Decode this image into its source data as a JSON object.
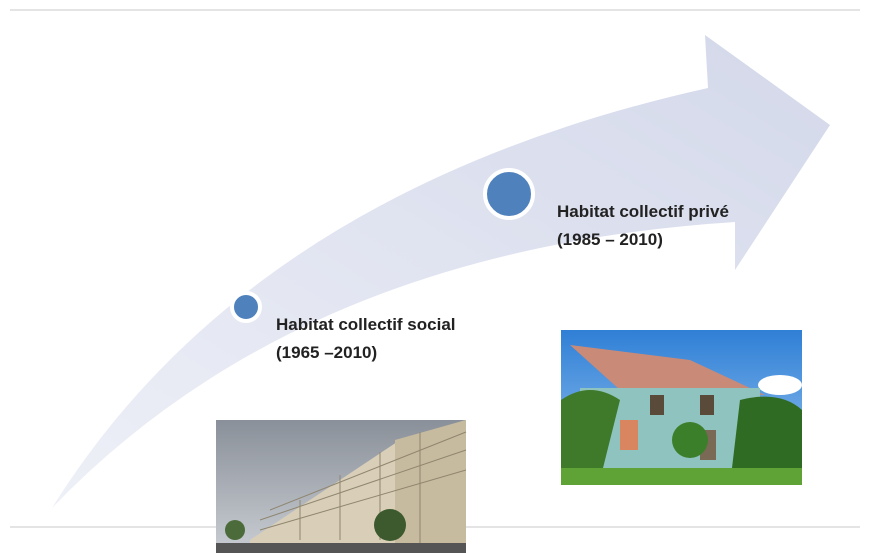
{
  "milestones": [
    {
      "label": "Habitat collectif social",
      "period": "(1965 –2010)"
    },
    {
      "label": "Habitat collectif privé",
      "period": "(1985 – 2010)"
    }
  ]
}
